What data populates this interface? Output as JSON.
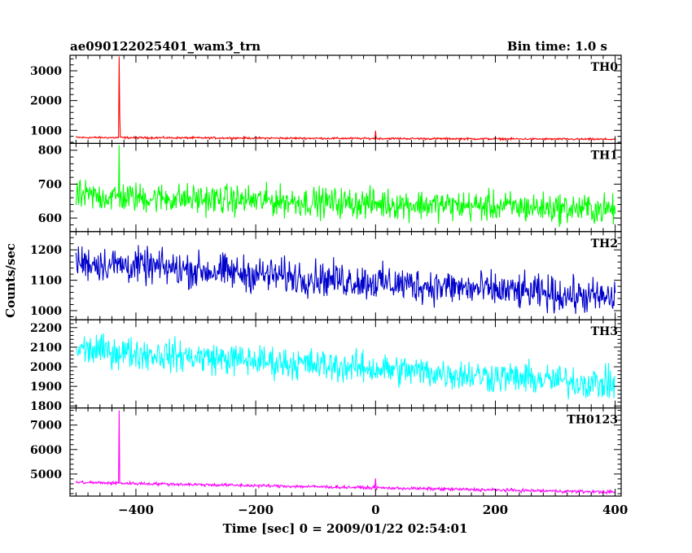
{
  "header": {
    "title": "ae090122025401_wam3_trn",
    "bin_time": "Bin time: 1.0 s"
  },
  "chart_data": {
    "type": "line",
    "title": "ae090122025401_wam3_trn",
    "subtitle": "Bin time: 1.0 s",
    "xlabel": "Time [sec] 0 = 2009/01/22 02:54:01",
    "ylabel": "Counts/sec",
    "xlim": [
      -510,
      410
    ],
    "x_ticks": [
      -400,
      -200,
      0,
      200,
      400
    ],
    "x_tick_labels": [
      "−400",
      "−200",
      "0",
      "200",
      "400"
    ],
    "x_data_range": [
      -500,
      400
    ],
    "x_step": 1.0,
    "grid": false,
    "series": [
      {
        "name": "TH0",
        "color": "#ff0000",
        "ylim": [
          560,
          3520
        ],
        "y_ticks": [
          1000,
          2000,
          3000
        ],
        "y_tick_labels": [
          "1000",
          "2000",
          "3000"
        ],
        "baseline": [
          [
            -500,
            760
          ],
          [
            400,
            700
          ]
        ],
        "noise": 28,
        "spikes": [
          {
            "x": -428,
            "y": 3480
          },
          {
            "x": -427,
            "y": 1500
          },
          {
            "x": 0,
            "y": 990
          }
        ]
      },
      {
        "name": "TH1",
        "color": "#00ff00",
        "ylim": [
          560,
          820
        ],
        "y_ticks": [
          600,
          700,
          800
        ],
        "y_tick_labels": [
          "600",
          "700",
          "800"
        ],
        "baseline": [
          [
            -500,
            665
          ],
          [
            400,
            625
          ]
        ],
        "noise": 38,
        "spikes": [
          {
            "x": -428,
            "y": 815
          }
        ]
      },
      {
        "name": "TH2",
        "color": "#0000cc",
        "ylim": [
          970,
          1260
        ],
        "y_ticks": [
          1000,
          1100,
          1200
        ],
        "y_tick_labels": [
          "1000",
          "1100",
          "1200"
        ],
        "baseline": [
          [
            -500,
            1160
          ],
          [
            400,
            1040
          ]
        ],
        "noise": 50,
        "spikes": []
      },
      {
        "name": "TH3",
        "color": "#00ffff",
        "ylim": [
          1790,
          2240
        ],
        "y_ticks": [
          1800,
          1900,
          2000,
          2100,
          2200
        ],
        "y_tick_labels": [
          "1800",
          "1900",
          "2000",
          "2100",
          "2200"
        ],
        "baseline": [
          [
            -500,
            2090
          ],
          [
            400,
            1910
          ]
        ],
        "noise": 70,
        "spikes": []
      },
      {
        "name": "TH0123",
        "color": "#ff00ff",
        "ylim": [
          4100,
          7700
        ],
        "y_ticks": [
          5000,
          6000,
          7000
        ],
        "y_tick_labels": [
          "5000",
          "6000",
          "7000"
        ],
        "baseline": [
          [
            -500,
            4660
          ],
          [
            400,
            4260
          ]
        ],
        "noise": 55,
        "spikes": [
          {
            "x": -428,
            "y": 7600
          },
          {
            "x": 0,
            "y": 4820
          }
        ]
      }
    ]
  }
}
